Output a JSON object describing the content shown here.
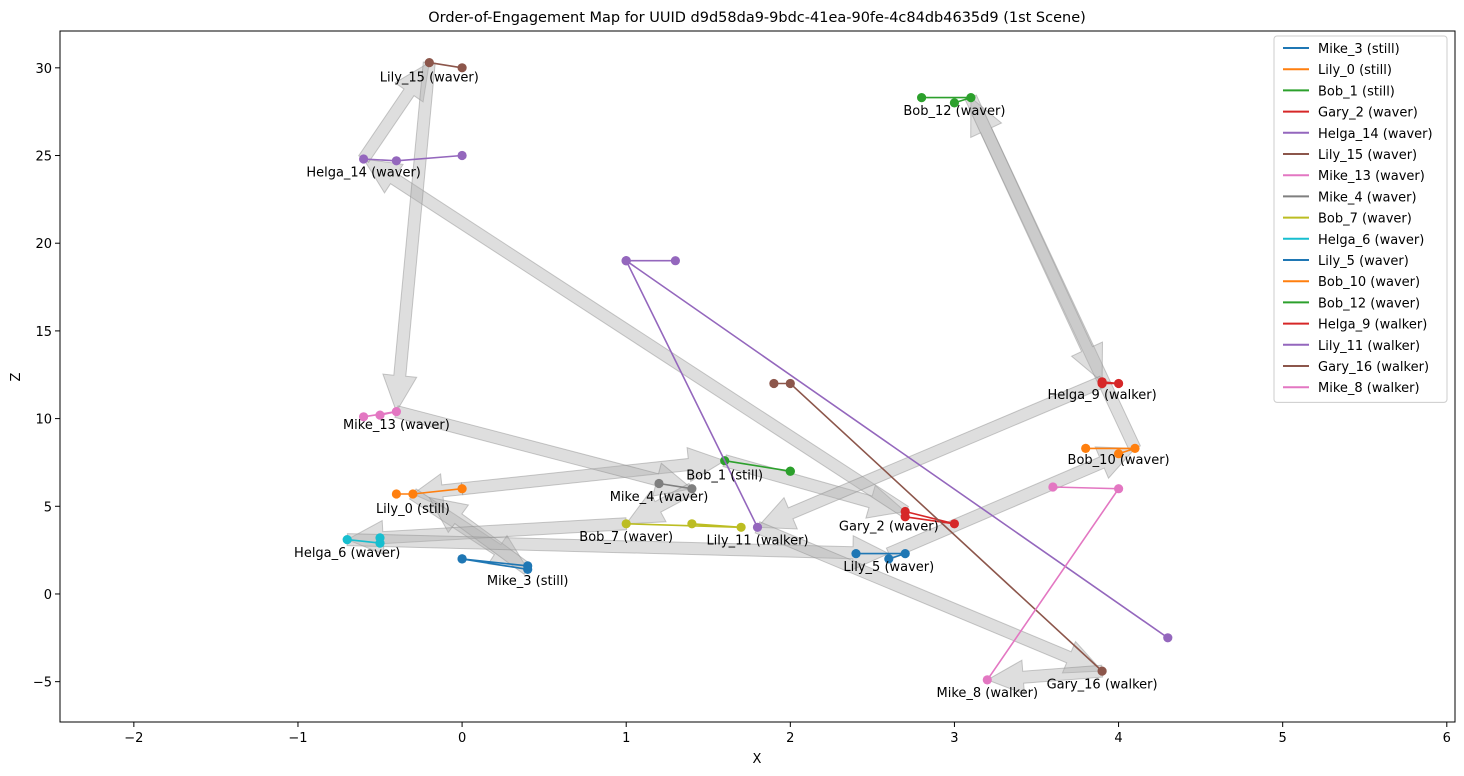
{
  "chart_data": {
    "type": "line",
    "title": "Order-of-Engagement Map for UUID d9d58da9-9bdc-41ea-90fe-4c84db4635d9 (1st Scene)",
    "xlabel": "X",
    "ylabel": "Z",
    "xlim": [
      -2.45,
      6.05
    ],
    "ylim": [
      -7.3,
      32.1
    ],
    "xticks": [
      -2,
      -1,
      0,
      1,
      2,
      3,
      4,
      5,
      6
    ],
    "yticks": [
      -5,
      0,
      5,
      10,
      15,
      20,
      25,
      30
    ],
    "grid": false,
    "legend_position": "top-right",
    "series": [
      {
        "name": "Mike_3 (still)",
        "color": "#1f77b4",
        "points": [
          [
            0,
            2
          ],
          [
            0.4,
            1.4
          ],
          [
            0.4,
            1.6
          ],
          [
            0,
            2
          ]
        ],
        "label": "Mike_3 (still)",
        "label_at": [
          0.4,
          0.8
        ]
      },
      {
        "name": "Lily_0 (still)",
        "color": "#ff7f0e",
        "points": [
          [
            -0.4,
            5.7
          ],
          [
            -0.3,
            5.7
          ],
          [
            0,
            6
          ]
        ],
        "label": "Lily_0 (still)",
        "label_at": [
          -0.3,
          4.9
        ]
      },
      {
        "name": "Bob_1 (still)",
        "color": "#2ca02c",
        "points": [
          [
            1.6,
            7.6
          ],
          [
            2,
            7
          ],
          [
            2,
            7
          ]
        ],
        "label": "Bob_1 (still)",
        "label_at": [
          1.6,
          6.8
        ]
      },
      {
        "name": "Gary_2 (waver)",
        "color": "#d62728",
        "points": [
          [
            2.7,
            4.7
          ],
          [
            3,
            4
          ],
          [
            2.7,
            4.4
          ]
        ],
        "label": "Gary_2 (waver)",
        "label_at": [
          2.6,
          3.9
        ]
      },
      {
        "name": "Helga_14 (waver)",
        "color": "#9467bd",
        "points": [
          [
            -0.6,
            24.8
          ],
          [
            -0.4,
            24.7
          ],
          [
            0,
            25
          ]
        ],
        "label": "Helga_14 (waver)",
        "label_at": [
          -0.6,
          24.1
        ]
      },
      {
        "name": "Lily_15 (waver)",
        "color": "#8c564b",
        "points": [
          [
            -0.2,
            30.3
          ],
          [
            0,
            30
          ]
        ],
        "label": "Lily_15 (waver)",
        "label_at": [
          -0.2,
          29.5
        ]
      },
      {
        "name": "Mike_13 (waver)",
        "color": "#e377c2",
        "points": [
          [
            -0.6,
            10.1
          ],
          [
            -0.4,
            10.4
          ],
          [
            -0.5,
            10.2
          ]
        ],
        "label": "Mike_13 (waver)",
        "label_at": [
          -0.4,
          9.7
        ]
      },
      {
        "name": "Mike_4 (waver)",
        "color": "#7f7f7f",
        "points": [
          [
            1.2,
            6.3
          ],
          [
            1.4,
            6
          ]
        ],
        "label": "Mike_4 (waver)",
        "label_at": [
          1.2,
          5.6
        ]
      },
      {
        "name": "Bob_7 (waver)",
        "color": "#bcbd22",
        "points": [
          [
            1,
            4
          ],
          [
            1.7,
            3.8
          ],
          [
            1.4,
            4
          ]
        ],
        "label": "Bob_7 (waver)",
        "label_at": [
          1,
          3.3
        ]
      },
      {
        "name": "Helga_6 (waver)",
        "color": "#17becf",
        "points": [
          [
            -0.7,
            3.1
          ],
          [
            -0.5,
            2.9
          ],
          [
            -0.5,
            3.2
          ]
        ],
        "label": "Helga_6 (waver)",
        "label_at": [
          -0.7,
          2.4
        ]
      },
      {
        "name": "Lily_5 (waver)",
        "color": "#1f77b4",
        "points": [
          [
            2.4,
            2.3
          ],
          [
            2.7,
            2.3
          ],
          [
            2.6,
            2
          ]
        ],
        "label": "Lily_5 (waver)",
        "label_at": [
          2.6,
          1.6
        ]
      },
      {
        "name": "Bob_10 (waver)",
        "color": "#ff7f0e",
        "points": [
          [
            3.8,
            8.3
          ],
          [
            4.1,
            8.3
          ],
          [
            4,
            8
          ]
        ],
        "label": "Bob_10 (waver)",
        "label_at": [
          4,
          7.7
        ]
      },
      {
        "name": "Bob_12 (waver)",
        "color": "#2ca02c",
        "points": [
          [
            2.8,
            28.3
          ],
          [
            3.1,
            28.3
          ],
          [
            3,
            28
          ]
        ],
        "label": "Bob_12 (waver)",
        "label_at": [
          3,
          27.6
        ]
      },
      {
        "name": "Helga_9 (walker)",
        "color": "#d62728",
        "points": [
          [
            3.9,
            12.1
          ],
          [
            4,
            12
          ],
          [
            3.9,
            12
          ]
        ],
        "label": "Helga_9 (walker)",
        "label_at": [
          3.9,
          11.4
        ]
      },
      {
        "name": "Lily_11 (walker)",
        "color": "#9467bd",
        "points": [
          [
            1,
            19
          ],
          [
            1.3,
            19
          ],
          [
            1,
            19
          ],
          [
            4.3,
            -2.5
          ],
          [
            1,
            19
          ],
          [
            1.8,
            3.8
          ]
        ],
        "label": "Lily_11 (walker)",
        "label_at": [
          1.8,
          3.1
        ]
      },
      {
        "name": "Gary_16 (walker)",
        "color": "#8c564b",
        "points": [
          [
            1.9,
            12
          ],
          [
            2,
            12
          ],
          [
            3.9,
            -4.4
          ]
        ],
        "label": "Gary_16 (walker)",
        "label_at": [
          3.9,
          -5.1
        ]
      },
      {
        "name": "Mike_8 (walker)",
        "color": "#e377c2",
        "points": [
          [
            3.6,
            6.1
          ],
          [
            4,
            6
          ],
          [
            3.2,
            -4.9
          ]
        ],
        "label": "Mike_8 (walker)",
        "label_at": [
          3.2,
          -5.6
        ]
      }
    ],
    "arrows": [
      [
        [
          0,
          6
        ],
        [
          -0.3,
          5.7
        ]
      ],
      [
        [
          -0.3,
          5.7
        ],
        [
          0.4,
          1.4
        ]
      ],
      [
        [
          0.4,
          1.4
        ],
        [
          -0.2,
          5.5
        ]
      ],
      [
        [
          0,
          6
        ],
        [
          1.6,
          7.6
        ]
      ],
      [
        [
          1.6,
          7.6
        ],
        [
          2.7,
          4.7
        ]
      ],
      [
        [
          2.7,
          4.7
        ],
        [
          -0.6,
          24.8
        ]
      ],
      [
        [
          -0.6,
          24.8
        ],
        [
          -0.2,
          30.3
        ]
      ],
      [
        [
          -0.2,
          30.3
        ],
        [
          -0.4,
          10.4
        ]
      ],
      [
        [
          -0.4,
          10.4
        ],
        [
          1.4,
          6
        ]
      ],
      [
        [
          1.4,
          6
        ],
        [
          1,
          4
        ]
      ],
      [
        [
          1,
          4
        ],
        [
          -0.7,
          3.1
        ]
      ],
      [
        [
          -0.7,
          3.1
        ],
        [
          2.6,
          2.3
        ]
      ],
      [
        [
          2.6,
          2.3
        ],
        [
          4.1,
          8.3
        ]
      ],
      [
        [
          4.1,
          8.3
        ],
        [
          3.1,
          28.3
        ]
      ],
      [
        [
          3.1,
          28.3
        ],
        [
          3.9,
          12.1
        ]
      ],
      [
        [
          3.9,
          12.1
        ],
        [
          1.8,
          3.8
        ]
      ],
      [
        [
          1.8,
          3.8
        ],
        [
          3.9,
          -4.4
        ]
      ],
      [
        [
          3.9,
          -4.4
        ],
        [
          3.2,
          -4.9
        ]
      ]
    ]
  }
}
